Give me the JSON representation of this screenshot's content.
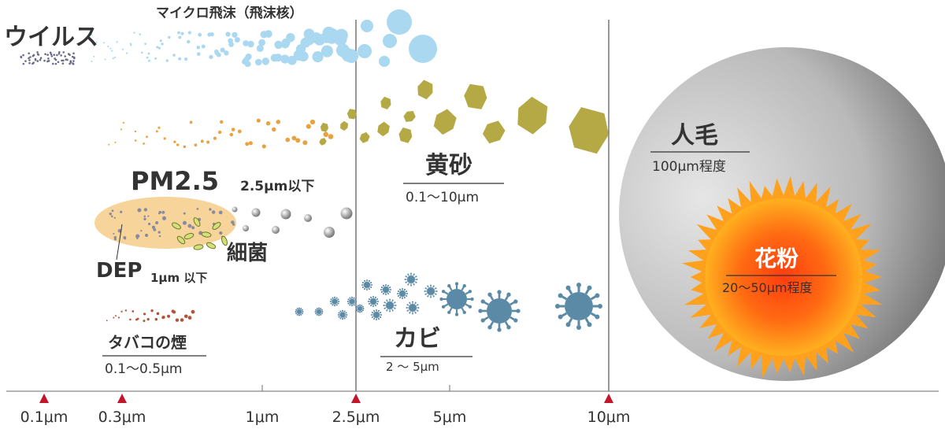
{
  "labels": {
    "virus": "ウイルス",
    "micro_droplet": "マイクロ飛沫（飛沫核）",
    "pm25": "PM2.5",
    "pm25_range": "2.5μm以下",
    "dep": "DEP",
    "dep_range": "1μm 以下",
    "bacteria": "細菌",
    "yellow_sand": "黄砂",
    "yellow_sand_range": "0.1〜10μm",
    "tobacco": "タバコの煙",
    "tobacco_range": "0.1〜0.5μm",
    "mold": "カビ",
    "mold_range": "2 〜 5μm",
    "hair": "人毛",
    "hair_range": "100μm程度",
    "pollen": "花粉",
    "pollen_range": "20〜50μm程度"
  },
  "axis": {
    "ticks": [
      {
        "label": "0.1μm",
        "marked": true
      },
      {
        "label": "0.3μm",
        "marked": true
      },
      {
        "label": "1μm",
        "marked": false
      },
      {
        "label": "2.5μm",
        "marked": true
      },
      {
        "label": "5μm",
        "marked": false
      },
      {
        "label": "10μm",
        "marked": true
      }
    ]
  },
  "colors": {
    "virus": "#6a6a8a",
    "droplet": "#a9d8f0",
    "sand": "#b5a945",
    "sand_small": "#e8a340",
    "mold": "#5b8aa6",
    "tobacco": "#b2543a",
    "pm25_blob": "#f7d49a",
    "pollen": "#f28a1c",
    "marker": "#c0172d",
    "axis": "#888888",
    "divider": "#555555"
  }
}
